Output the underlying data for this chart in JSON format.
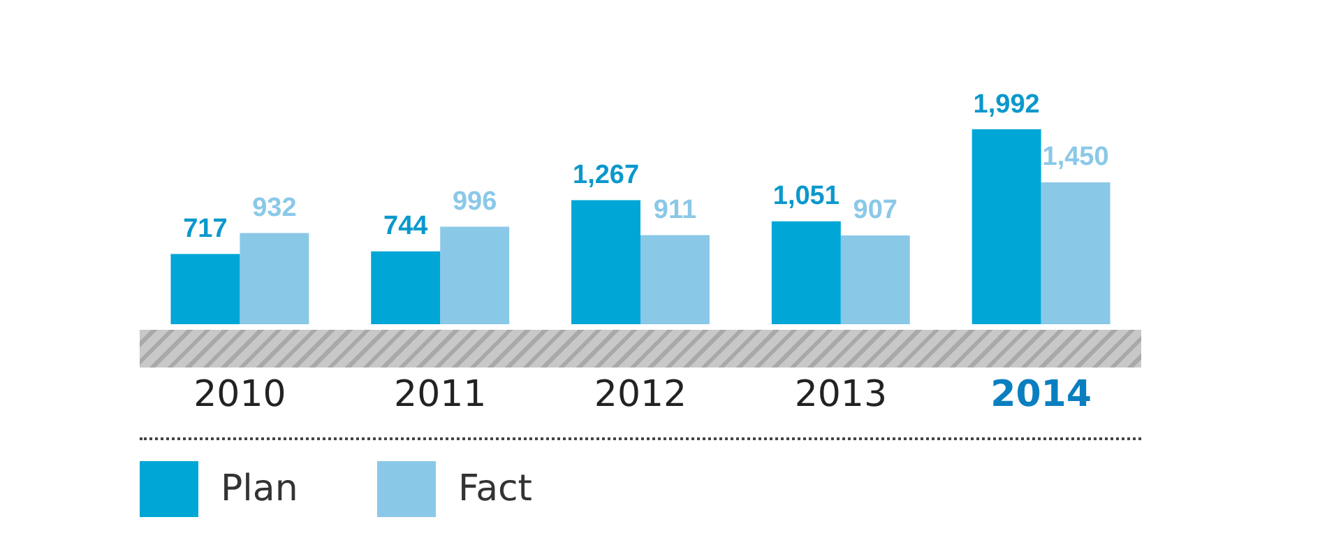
{
  "chart_data": {
    "type": "bar",
    "categories": [
      "2010",
      "2011",
      "2012",
      "2013",
      "2014"
    ],
    "series": [
      {
        "name": "Plan",
        "color": "#00a6d6",
        "values": [
          717,
          744,
          1267,
          1051,
          1992
        ],
        "value_labels": [
          "717",
          "744",
          "1,267",
          "1,051",
          "1,992"
        ]
      },
      {
        "name": "Fact",
        "color": "#8ac8e8",
        "values": [
          932,
          996,
          911,
          907,
          1450
        ],
        "value_labels": [
          "932",
          "996",
          "911",
          "907",
          "1,450"
        ]
      }
    ],
    "grid": false,
    "legend": "bottom left"
  }
}
